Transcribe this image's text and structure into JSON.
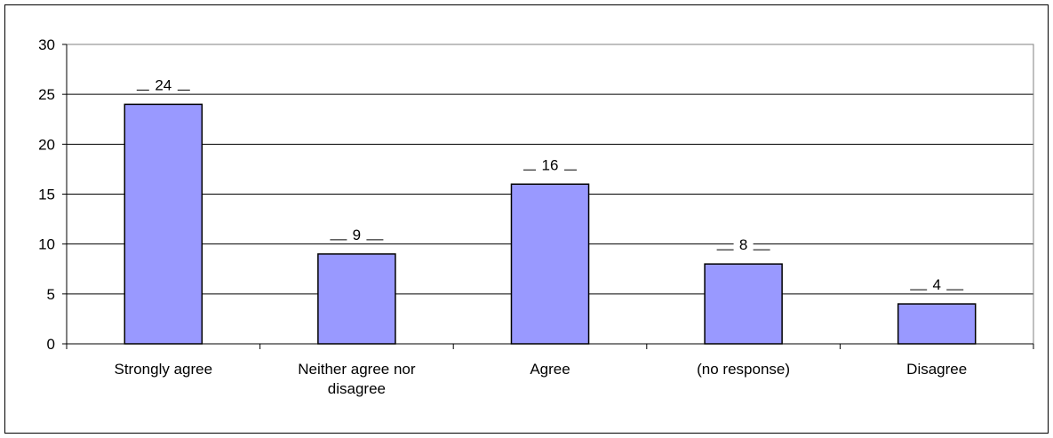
{
  "chart_data": {
    "type": "bar",
    "title": "",
    "xlabel": "",
    "ylabel": "",
    "categories": [
      [
        "Strongly agree"
      ],
      [
        "Neither agree nor",
        "disagree"
      ],
      [
        "Agree"
      ],
      [
        "(no response)"
      ],
      [
        "Disagree"
      ]
    ],
    "values": [
      24,
      9,
      16,
      8,
      4
    ],
    "ylim": [
      0,
      30
    ],
    "yticks": [
      "0",
      "5",
      "10",
      "15",
      "20",
      "25",
      "30"
    ],
    "grid": true,
    "legend": "none",
    "colors": {
      "bar_fill": "#9999ff",
      "bar_stroke": "#000000",
      "plot_border": "#808080",
      "grid": "#000000"
    }
  }
}
